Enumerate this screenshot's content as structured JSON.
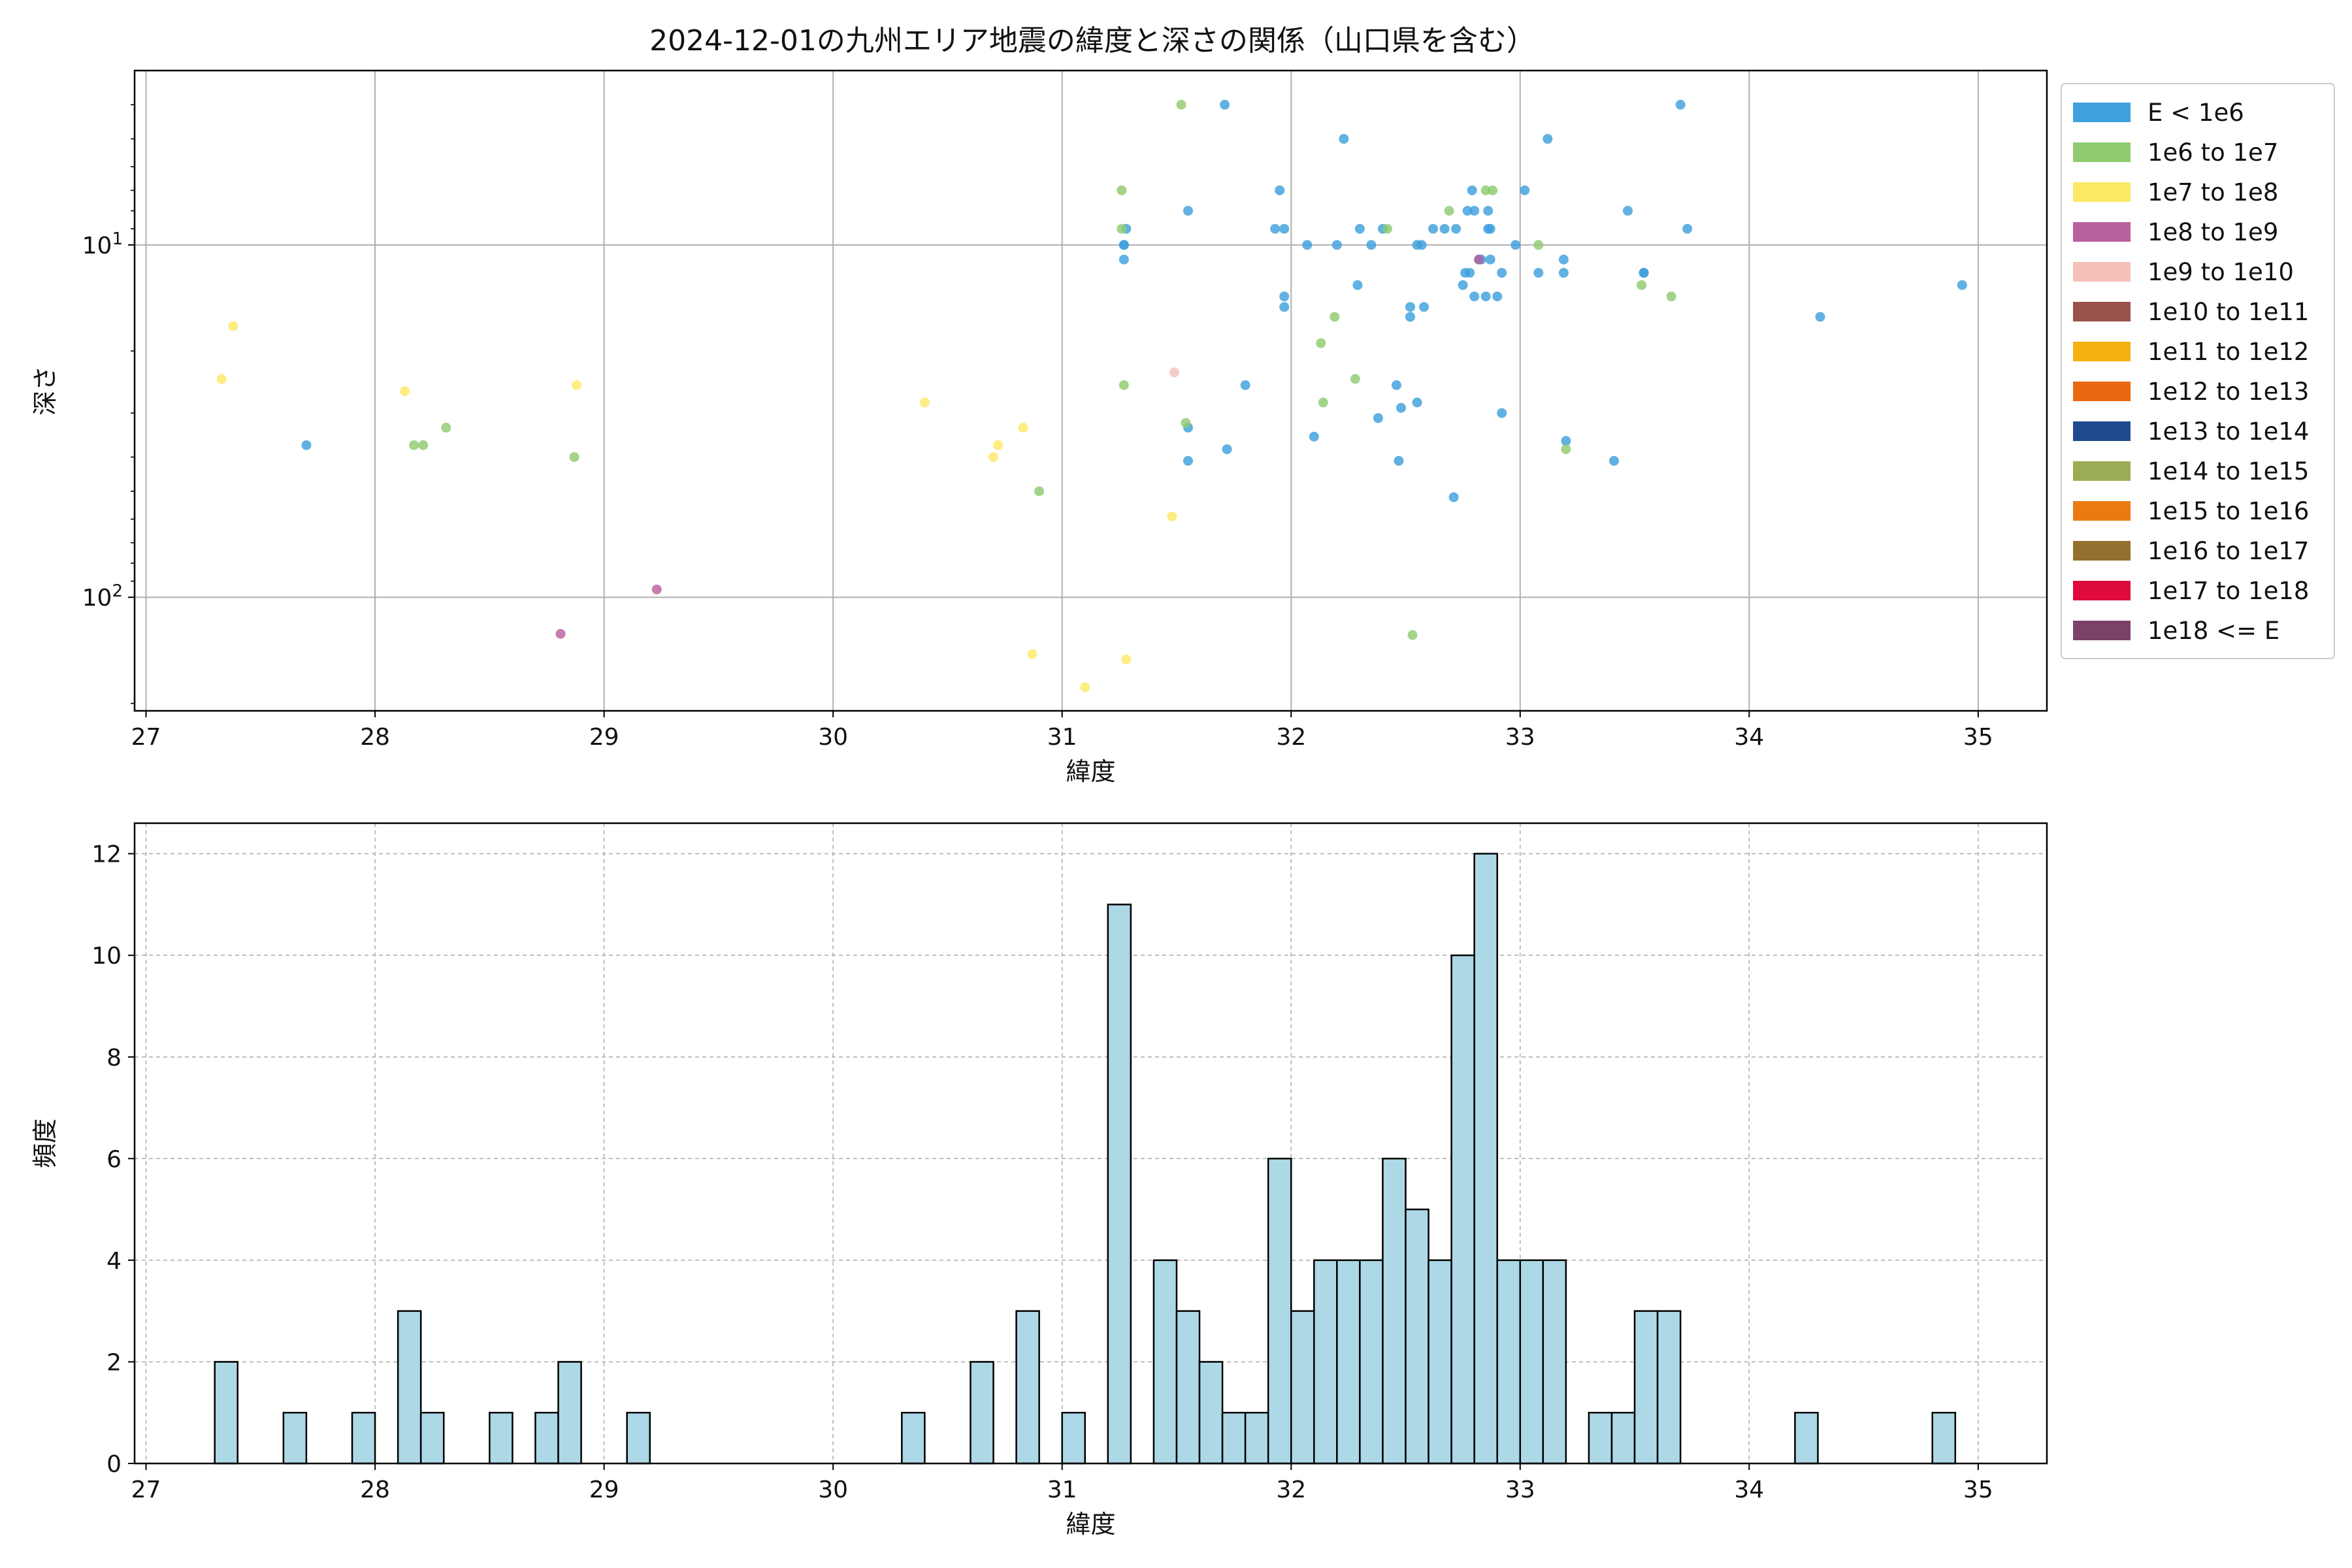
{
  "title": "2024-12-01の九州エリア地震の緯度と深さの関係（山口県を含む）",
  "chart_data": [
    {
      "type": "scatter",
      "xlabel": "緯度",
      "ylabel": "深さ",
      "xlim": [
        26.95,
        35.3
      ],
      "ylim": [
        210,
        3.2
      ],
      "yscale": "log",
      "y_inverted": true,
      "x_ticks": [
        "27",
        "28",
        "29",
        "30",
        "31",
        "32",
        "33",
        "34",
        "35"
      ],
      "y_tick_labels": [
        {
          "base": "10",
          "exp": "1",
          "value": 10
        },
        {
          "base": "10",
          "exp": "2",
          "value": 100
        }
      ],
      "grid": true,
      "legend_position": "outside-right",
      "legend": [
        {
          "label": "E < 1e6",
          "color": "#3ea0dc"
        },
        {
          "label": "1e6 to 1e7",
          "color": "#8fcb70"
        },
        {
          "label": "1e7 to 1e8",
          "color": "#fce966"
        },
        {
          "label": "1e8 to 1e9",
          "color": "#b9609f"
        },
        {
          "label": "1e9 to 1e10",
          "color": "#f5c0b8"
        },
        {
          "label": "1e10 to 1e11",
          "color": "#9a524a"
        },
        {
          "label": "1e11 to 1e12",
          "color": "#f7b10f"
        },
        {
          "label": "1e12 to 1e13",
          "color": "#ea6812"
        },
        {
          "label": "1e13 to 1e14",
          "color": "#1f4b8e"
        },
        {
          "label": "1e14 to 1e15",
          "color": "#9bad54"
        },
        {
          "label": "1e15 to 1e16",
          "color": "#ea7b12"
        },
        {
          "label": "1e16 to 1e17",
          "color": "#94702e"
        },
        {
          "label": "1e17 to 1e18",
          "color": "#de0a3c"
        },
        {
          "label": "1e18 <= E",
          "color": "#7b4268"
        }
      ],
      "series": [
        {
          "legend_label": "E < 1e6",
          "color": "#3ea0dc",
          "points": [
            [
              27.7,
              37
            ],
            [
              31.27,
              11
            ],
            [
              31.28,
              9
            ],
            [
              31.27,
              10
            ],
            [
              31.27,
              10
            ],
            [
              31.55,
              8
            ],
            [
              31.55,
              33
            ],
            [
              31.55,
              41
            ],
            [
              31.71,
              4
            ],
            [
              31.72,
              38
            ],
            [
              31.8,
              25
            ],
            [
              31.93,
              9
            ],
            [
              31.95,
              7
            ],
            [
              31.97,
              9
            ],
            [
              31.97,
              14
            ],
            [
              31.97,
              15
            ],
            [
              32.07,
              10
            ],
            [
              32.1,
              35
            ],
            [
              32.2,
              10
            ],
            [
              32.23,
              5
            ],
            [
              32.29,
              13
            ],
            [
              32.3,
              9
            ],
            [
              32.35,
              10
            ],
            [
              32.38,
              31
            ],
            [
              32.4,
              9
            ],
            [
              32.46,
              25
            ],
            [
              32.47,
              41
            ],
            [
              32.48,
              29
            ],
            [
              32.52,
              15
            ],
            [
              32.52,
              16
            ],
            [
              32.55,
              28
            ],
            [
              32.55,
              10
            ],
            [
              32.57,
              10
            ],
            [
              32.58,
              15
            ],
            [
              32.62,
              9
            ],
            [
              32.67,
              9
            ],
            [
              32.71,
              52
            ],
            [
              32.72,
              9
            ],
            [
              32.75,
              13
            ],
            [
              32.76,
              12
            ],
            [
              32.77,
              8
            ],
            [
              32.78,
              12
            ],
            [
              32.79,
              7
            ],
            [
              32.8,
              14
            ],
            [
              32.8,
              8
            ],
            [
              32.82,
              11
            ],
            [
              32.83,
              11
            ],
            [
              32.85,
              14
            ],
            [
              32.86,
              8
            ],
            [
              32.86,
              9
            ],
            [
              32.87,
              9
            ],
            [
              32.87,
              11
            ],
            [
              32.9,
              14
            ],
            [
              32.92,
              12
            ],
            [
              32.92,
              30
            ],
            [
              32.98,
              10
            ],
            [
              33.02,
              7
            ],
            [
              33.08,
              12
            ],
            [
              33.12,
              5
            ],
            [
              33.19,
              11
            ],
            [
              33.19,
              12
            ],
            [
              33.2,
              36
            ],
            [
              33.41,
              41
            ],
            [
              33.47,
              8
            ],
            [
              33.54,
              12
            ],
            [
              33.54,
              12
            ],
            [
              33.7,
              4
            ],
            [
              33.73,
              9
            ],
            [
              34.31,
              16
            ],
            [
              34.93,
              13
            ]
          ]
        },
        {
          "legend_label": "1e6 to 1e7",
          "color": "#8fcb70",
          "points": [
            [
              28.17,
              37
            ],
            [
              28.21,
              37
            ],
            [
              28.31,
              33
            ],
            [
              28.87,
              40
            ],
            [
              30.9,
              50
            ],
            [
              31.26,
              7
            ],
            [
              31.26,
              9
            ],
            [
              31.27,
              25
            ],
            [
              31.52,
              4
            ],
            [
              31.54,
              32
            ],
            [
              32.13,
              19
            ],
            [
              32.14,
              28
            ],
            [
              32.19,
              16
            ],
            [
              32.28,
              24
            ],
            [
              32.42,
              9
            ],
            [
              32.53,
              128
            ],
            [
              32.69,
              8
            ],
            [
              32.85,
              7
            ],
            [
              32.88,
              7
            ],
            [
              33.08,
              10
            ],
            [
              33.2,
              38
            ],
            [
              33.53,
              13
            ],
            [
              33.66,
              14
            ]
          ]
        },
        {
          "legend_label": "1e7 to 1e8",
          "color": "#fce966",
          "points": [
            [
              27.33,
              24
            ],
            [
              27.38,
              17
            ],
            [
              28.13,
              26
            ],
            [
              28.88,
              25
            ],
            [
              30.4,
              28
            ],
            [
              30.7,
              40
            ],
            [
              30.72,
              37
            ],
            [
              30.83,
              33
            ],
            [
              30.87,
              145
            ],
            [
              31.1,
              180
            ],
            [
              31.28,
              150
            ],
            [
              31.48,
              59
            ]
          ]
        },
        {
          "legend_label": "1e8 to 1e9",
          "color": "#b9609f",
          "points": [
            [
              28.81,
              127
            ],
            [
              29.23,
              95
            ],
            [
              32.82,
              11
            ]
          ]
        },
        {
          "legend_label": "1e9 to 1e10",
          "color": "#f5c0b8",
          "points": [
            [
              31.49,
              23
            ]
          ]
        }
      ]
    },
    {
      "type": "bar",
      "subtype": "histogram",
      "xlabel": "緯度",
      "ylabel": "頻度",
      "xlim": [
        26.95,
        35.3
      ],
      "ylim": [
        0,
        12.6
      ],
      "x_ticks": [
        "27",
        "28",
        "29",
        "30",
        "31",
        "32",
        "33",
        "34",
        "35"
      ],
      "y_ticks": [
        "0",
        "2",
        "4",
        "6",
        "8",
        "10",
        "12"
      ],
      "grid": true,
      "bar_color": "#add8e6",
      "edge_color": "#000000",
      "bin_width": 0.1,
      "bins_start": [
        27.3,
        27.6,
        27.9,
        28.1,
        28.2,
        28.5,
        28.7,
        28.8,
        29.1,
        30.3,
        30.6,
        30.8,
        31.0,
        31.2,
        31.4,
        31.5,
        31.6,
        31.7,
        31.8,
        31.9,
        32.0,
        32.1,
        32.2,
        32.3,
        32.4,
        32.5,
        32.6,
        32.7,
        32.8,
        32.9,
        33.0,
        33.1,
        33.3,
        33.4,
        33.5,
        33.6,
        34.2,
        34.8
      ],
      "values": [
        2,
        1,
        1,
        3,
        1,
        1,
        1,
        2,
        1,
        1,
        2,
        3,
        1,
        11,
        4,
        3,
        2,
        1,
        1,
        6,
        3,
        4,
        4,
        4,
        6,
        5,
        4,
        10,
        12,
        4,
        4,
        4,
        1,
        1,
        3,
        3,
        1,
        1
      ]
    }
  ]
}
